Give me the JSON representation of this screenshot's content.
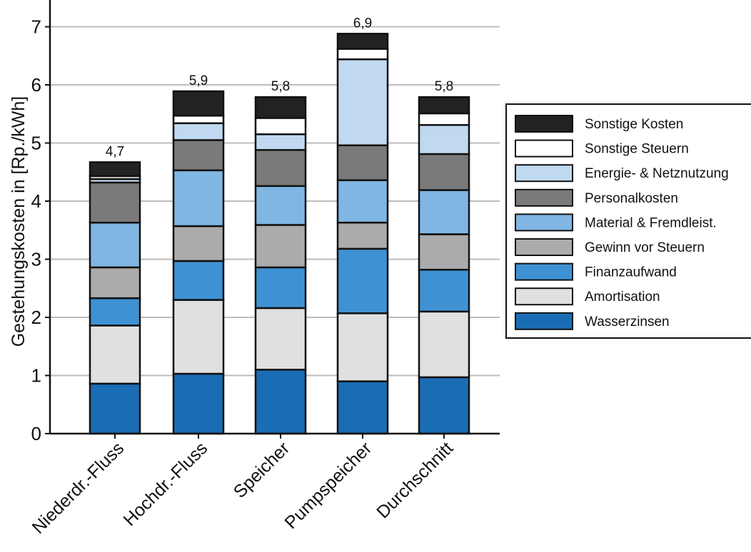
{
  "chart_data": {
    "type": "bar",
    "stacked": true,
    "ylabel": "Gestehungskosten in [Rp./kWh]",
    "xlabel": "",
    "ylim": [
      0,
      7.3
    ],
    "yticks": [
      "0",
      "1",
      "2",
      "3",
      "4",
      "5",
      "6",
      "7"
    ],
    "grid": "horizontal",
    "legend_position": "right",
    "categories": [
      "Niederdr.-Fluss",
      "Hochdr.-Fluss",
      "Speicher",
      "Pumpspeicher",
      "Durchschnitt"
    ],
    "totals_labels": [
      "4,7",
      "5,9",
      "5,8",
      "6,9",
      "5,8"
    ],
    "series": [
      {
        "name": "Wasserzinsen",
        "color": "#1a6db5",
        "values": [
          0.86,
          1.03,
          1.1,
          0.9,
          0.97
        ]
      },
      {
        "name": "Amortisation",
        "color": "#e0e0e0",
        "values": [
          1.0,
          1.27,
          1.06,
          1.17,
          1.13
        ]
      },
      {
        "name": "Finanzaufwand",
        "color": "#3e92d4",
        "values": [
          0.47,
          0.67,
          0.7,
          1.11,
          0.72
        ]
      },
      {
        "name": "Gewinn vor Steuern",
        "color": "#ababab",
        "values": [
          0.53,
          0.6,
          0.73,
          0.45,
          0.61
        ]
      },
      {
        "name": "Material & Fremdleist.",
        "color": "#7fb6e3",
        "values": [
          0.77,
          0.96,
          0.67,
          0.73,
          0.76
        ]
      },
      {
        "name": "Personalkosten",
        "color": "#7a7a7a",
        "values": [
          0.69,
          0.52,
          0.62,
          0.6,
          0.62
        ]
      },
      {
        "name": "Energie- & Netznutzung",
        "color": "#c0d9f0",
        "values": [
          0.06,
          0.29,
          0.27,
          1.48,
          0.5
        ]
      },
      {
        "name": "Sonstige Steuern",
        "color": "#ffffff",
        "values": [
          0.05,
          0.13,
          0.28,
          0.18,
          0.2
        ]
      },
      {
        "name": "Sonstige Kosten",
        "color": "#222222",
        "values": [
          0.24,
          0.42,
          0.36,
          0.26,
          0.28
        ]
      }
    ]
  }
}
